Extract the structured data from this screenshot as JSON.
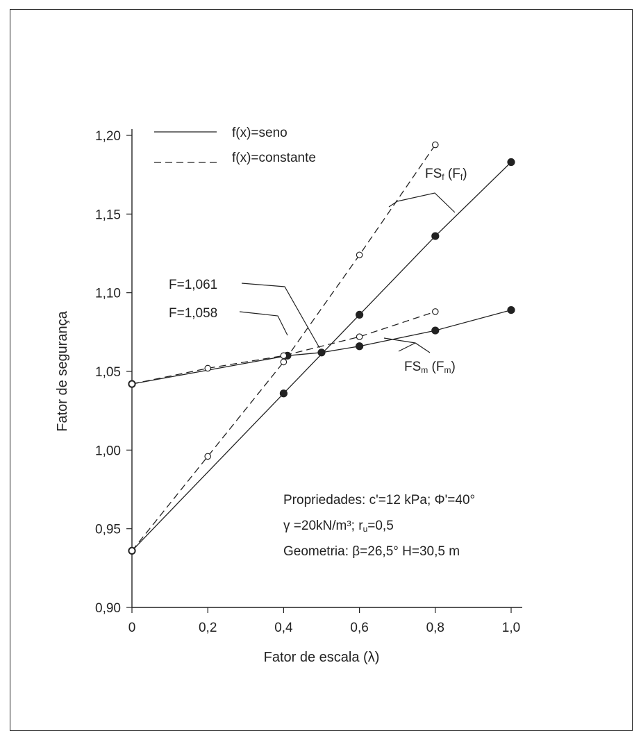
{
  "chart_data": {
    "type": "line",
    "xlabel": "Fator de escala (λ)",
    "ylabel": "Fator de segurança",
    "xlim": [
      0,
      1.0
    ],
    "ylim": [
      0.9,
      1.2
    ],
    "x_tick_labels": [
      "0",
      "0,2",
      "0,4",
      "0,6",
      "0,8",
      "1,0"
    ],
    "y_tick_labels": [
      "0,90",
      "0,95",
      "1,00",
      "1,05",
      "1,10",
      "1,15",
      "1,20"
    ],
    "legend": {
      "position": "top-left",
      "entries": [
        {
          "label": "f(x)=seno",
          "style": "solid"
        },
        {
          "label": "f(x)=constante",
          "style": "dashed"
        }
      ]
    },
    "series": [
      {
        "name": "FSf (Ff) — f(x)=seno",
        "style": "solid",
        "marker": "filled",
        "x": [
          0,
          0.4,
          0.6,
          0.8,
          1.0
        ],
        "y": [
          0.936,
          1.036,
          1.086,
          1.136,
          1.183
        ]
      },
      {
        "name": "FSf (Ff) — f(x)=constante",
        "style": "dashed",
        "marker": "open",
        "x": [
          0,
          0.2,
          0.4,
          0.6,
          0.8
        ],
        "y": [
          0.936,
          0.996,
          1.056,
          1.124,
          1.194
        ]
      },
      {
        "name": "FSm (Fm) — f(x)=seno",
        "style": "solid",
        "marker": "filled",
        "x": [
          0,
          0.41,
          0.5,
          0.6,
          0.8,
          1.0
        ],
        "y": [
          1.042,
          1.06,
          1.062,
          1.066,
          1.076,
          1.089
        ]
      },
      {
        "name": "FSm (Fm) — f(x)=constante",
        "style": "dashed",
        "marker": "open",
        "x": [
          0,
          0.2,
          0.4,
          0.6,
          0.8
        ],
        "y": [
          1.042,
          1.052,
          1.06,
          1.072,
          1.088
        ]
      }
    ],
    "annotations": {
      "fsf": {
        "main": "FS",
        "sub": "f",
        "paren_open": " (F",
        "paren_sub": "f",
        "paren_close": ")"
      },
      "fsm": {
        "main": "FS",
        "sub": "m",
        "paren_open": " (F",
        "paren_sub": "m",
        "paren_close": ")"
      },
      "f1": "F=1,061",
      "f2": "F=1,058"
    },
    "notes": [
      {
        "pre": "Propriedades: c'=12 kPa;  Φ'=40°",
        "sub": "",
        "post": ""
      },
      {
        "pre": "γ =20kN/m³; r",
        "sub": "u",
        "post": "=0,5"
      },
      {
        "pre": "Geometria: β=26,5° H=30,5 m",
        "sub": "",
        "post": ""
      }
    ]
  }
}
